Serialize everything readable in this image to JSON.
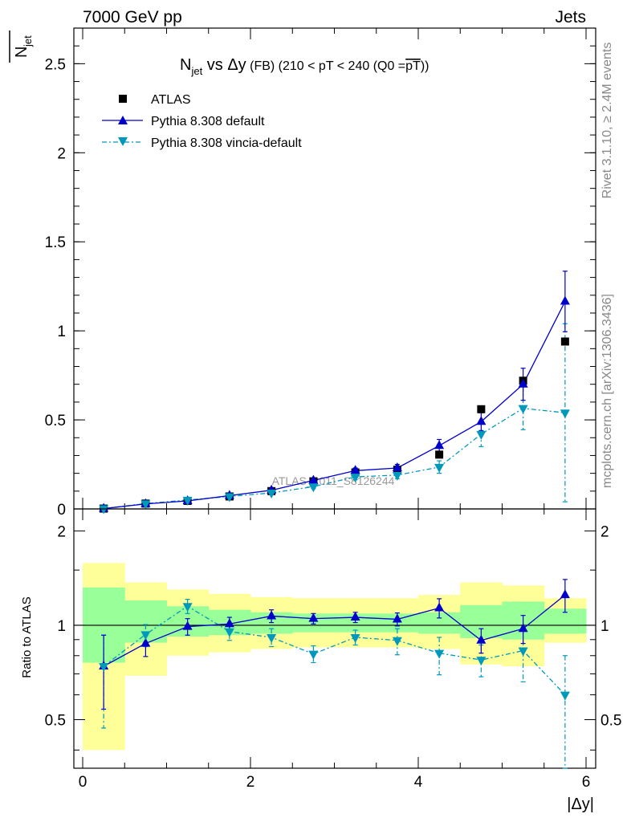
{
  "header": {
    "left": "7000 GeV pp",
    "right": "Jets"
  },
  "side_labels": {
    "rivet": "Rivet 3.1.10, ≥ 2.4M events",
    "mcplots": "mcplots.cern.ch [arXiv:1306.3436]"
  },
  "watermark": "ATLAS_2011_S8126244",
  "legend_entries": [
    "ATLAS",
    "Pythia 8.308 default",
    "Pythia 8.308 vincia-default"
  ],
  "colors": {
    "atlas": "#000000",
    "default": "#0000cc",
    "vincia": "#0099bb",
    "band_inner": "#99ff99",
    "band_outer": "#ffff99"
  },
  "chart_data": [
    {
      "type": "scatter",
      "panel": "main",
      "title": {
        "n": "N",
        "jet": "jet",
        "vs": " vs ",
        "dy": "Δy",
        "fb": " (FB) ",
        "rest": "(210 < pT < 240 (Q0 =",
        "pt": "pT",
        "close": "))"
      },
      "ylabel": {
        "main": "N",
        "sub": "jet"
      },
      "xlim": [
        0,
        6.0
      ],
      "ylim": [
        0,
        2.7
      ],
      "yticks": [
        0,
        0.5,
        1,
        1.5,
        2,
        2.5
      ],
      "ytick_labels": [
        "0",
        "0.5",
        "1",
        "1.5",
        "2",
        "2.5"
      ],
      "x": [
        0.25,
        0.75,
        1.25,
        1.75,
        2.25,
        2.75,
        3.25,
        3.75,
        4.25,
        4.75,
        5.25,
        5.75
      ],
      "series": [
        {
          "name": "ATLAS",
          "marker": "square",
          "values": [
            0.002,
            0.03,
            0.045,
            0.07,
            0.1,
            0.155,
            0.205,
            0.22,
            0.305,
            0.56,
            0.72,
            0.94
          ]
        },
        {
          "name": "Pythia 8.308 default",
          "marker": "triangle-up",
          "line": "solid",
          "values": [
            0.002,
            0.028,
            0.045,
            0.075,
            0.105,
            0.16,
            0.215,
            0.23,
            0.355,
            0.49,
            0.7,
            1.165
          ],
          "err": [
            0.002,
            0.003,
            0.004,
            0.006,
            0.008,
            0.012,
            0.015,
            0.02,
            0.035,
            0.05,
            0.09,
            0.17
          ]
        },
        {
          "name": "Pythia 8.308 vincia-default",
          "marker": "triangle-down",
          "line": "dashdot",
          "values": [
            0.002,
            0.03,
            0.05,
            0.07,
            0.09,
            0.125,
            0.18,
            0.19,
            0.235,
            0.42,
            0.565,
            0.54
          ],
          "err": [
            0.002,
            0.003,
            0.005,
            0.006,
            0.008,
            0.012,
            0.016,
            0.02,
            0.035,
            0.07,
            0.12,
            0.5
          ]
        }
      ]
    },
    {
      "type": "scatter",
      "panel": "ratio",
      "ylabel": "Ratio to ATLAS",
      "xlabel": "|Δy|",
      "xlim": [
        0,
        6.0
      ],
      "ylim": [
        0.35,
        2.35
      ],
      "log_y": true,
      "yticks": [
        0.5,
        1,
        2
      ],
      "ytick_labels": [
        "0.5",
        "1",
        "2"
      ],
      "xticks": [
        0,
        2,
        4,
        6
      ],
      "xtick_labels": [
        "0",
        "2",
        "4",
        "6"
      ],
      "x_edges": [
        0,
        0.5,
        1.0,
        1.5,
        2.0,
        2.5,
        3.0,
        3.5,
        4.0,
        4.5,
        5.0,
        5.5,
        6.0
      ],
      "band_inner": {
        "low": [
          0.76,
          0.88,
          0.92,
          0.93,
          0.94,
          0.95,
          0.95,
          0.95,
          0.94,
          0.91,
          0.9,
          0.94
        ],
        "high": [
          1.32,
          1.2,
          1.15,
          1.12,
          1.1,
          1.09,
          1.09,
          1.09,
          1.1,
          1.16,
          1.19,
          1.13
        ]
      },
      "band_outer": {
        "low": [
          0.4,
          0.69,
          0.8,
          0.82,
          0.84,
          0.85,
          0.85,
          0.85,
          0.84,
          0.75,
          0.74,
          0.88
        ],
        "high": [
          1.58,
          1.37,
          1.3,
          1.26,
          1.23,
          1.22,
          1.22,
          1.22,
          1.25,
          1.37,
          1.34,
          1.22
        ]
      },
      "x": [
        0.25,
        0.75,
        1.25,
        1.75,
        2.25,
        2.75,
        3.25,
        3.75,
        4.25,
        4.75,
        5.25,
        5.75
      ],
      "series": [
        {
          "name": "Pythia 8.308 default",
          "values": [
            0.74,
            0.875,
            0.99,
            1.01,
            1.07,
            1.05,
            1.06,
            1.045,
            1.135,
            0.895,
            0.975,
            1.25
          ],
          "err_low": [
            0.2,
            0.08,
            0.06,
            0.05,
            0.05,
            0.04,
            0.04,
            0.05,
            0.08,
            0.08,
            0.1,
            0.15
          ],
          "err_high": [
            0.19,
            0.07,
            0.06,
            0.05,
            0.05,
            0.04,
            0.04,
            0.05,
            0.08,
            0.08,
            0.1,
            0.15
          ]
        },
        {
          "name": "Pythia 8.308 vincia-default",
          "values": [
            0.74,
            0.935,
            1.15,
            0.955,
            0.915,
            0.81,
            0.915,
            0.895,
            0.815,
            0.775,
            0.83,
            0.6
          ],
          "err_low": [
            0.27,
            0.08,
            0.06,
            0.06,
            0.06,
            0.05,
            0.05,
            0.09,
            0.12,
            0.09,
            0.17,
            0.3
          ],
          "err_high": [
            0.19,
            0.07,
            0.06,
            0.06,
            0.06,
            0.05,
            0.05,
            0.08,
            0.1,
            0.09,
            0.14,
            0.2
          ]
        }
      ]
    }
  ]
}
